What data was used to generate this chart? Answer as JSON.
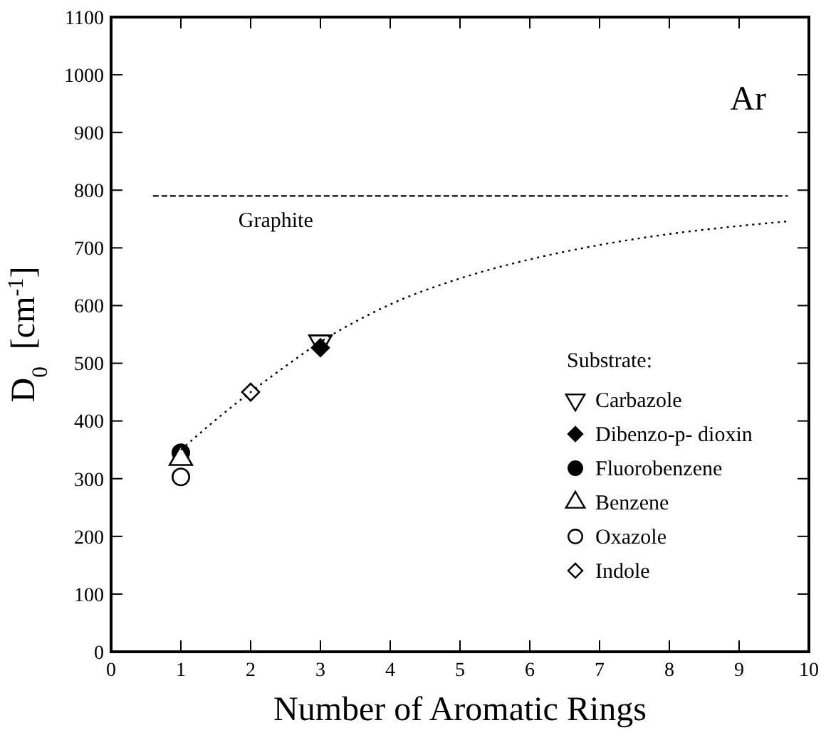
{
  "chart_data": {
    "type": "scatter",
    "xlabel": "Number of Aromatic Rings",
    "ylabel": "D$_{0}$  [cm$^{-1}$]",
    "legend_title": "Substrate:",
    "legend": "bottom right",
    "annotations": [
      "Ar"
    ],
    "xlim": [
      0,
      10
    ],
    "ylim": [
      0,
      1100
    ],
    "xticks": [
      0,
      1,
      2,
      3,
      4,
      5,
      6,
      7,
      8,
      9,
      10
    ],
    "yticks": [
      0,
      100,
      200,
      300,
      400,
      500,
      600,
      700,
      800,
      900,
      1000,
      1100
    ],
    "series": [
      {
        "name": "Carbazole",
        "color": "#000000",
        "marker": "triangle-down-open",
        "x": [
          3
        ],
        "values": [
          537
        ]
      },
      {
        "name": "Dibenzo-p- dioxin",
        "color": "#000000",
        "marker": "diamond",
        "x": [
          3
        ],
        "values": [
          527
        ]
      },
      {
        "name": "Fluorobenzene",
        "color": "#000000",
        "marker": "circle",
        "x": [
          1
        ],
        "values": [
          345
        ]
      },
      {
        "name": "Benzene",
        "color": "#000000",
        "marker": "triangle-open",
        "x": [
          1
        ],
        "values": [
          335
        ]
      },
      {
        "name": "Oxazole",
        "color": "#000000",
        "marker": "circle-open",
        "x": [
          1
        ],
        "values": [
          303
        ]
      },
      {
        "name": "Indole",
        "color": "#000000",
        "marker": "diamond-open",
        "x": [
          2
        ],
        "values": [
          450
        ]
      },
      {
        "name": "Graphite",
        "type": "line",
        "line_style": "dashed",
        "color": "#000000",
        "x": [
          0.6,
          9.7
        ],
        "values": [
          790,
          790
        ]
      },
      {
        "type": "line",
        "line_style": "dotted",
        "color": "#000000",
        "x": [
          1,
          1.5,
          2,
          2.5,
          3,
          3.5,
          4,
          5,
          6,
          7,
          8,
          9,
          9.7
        ],
        "values": [
          350,
          402,
          450,
          495,
          537,
          572,
          602,
          647,
          680,
          705,
          724,
          738,
          746
        ]
      }
    ]
  }
}
